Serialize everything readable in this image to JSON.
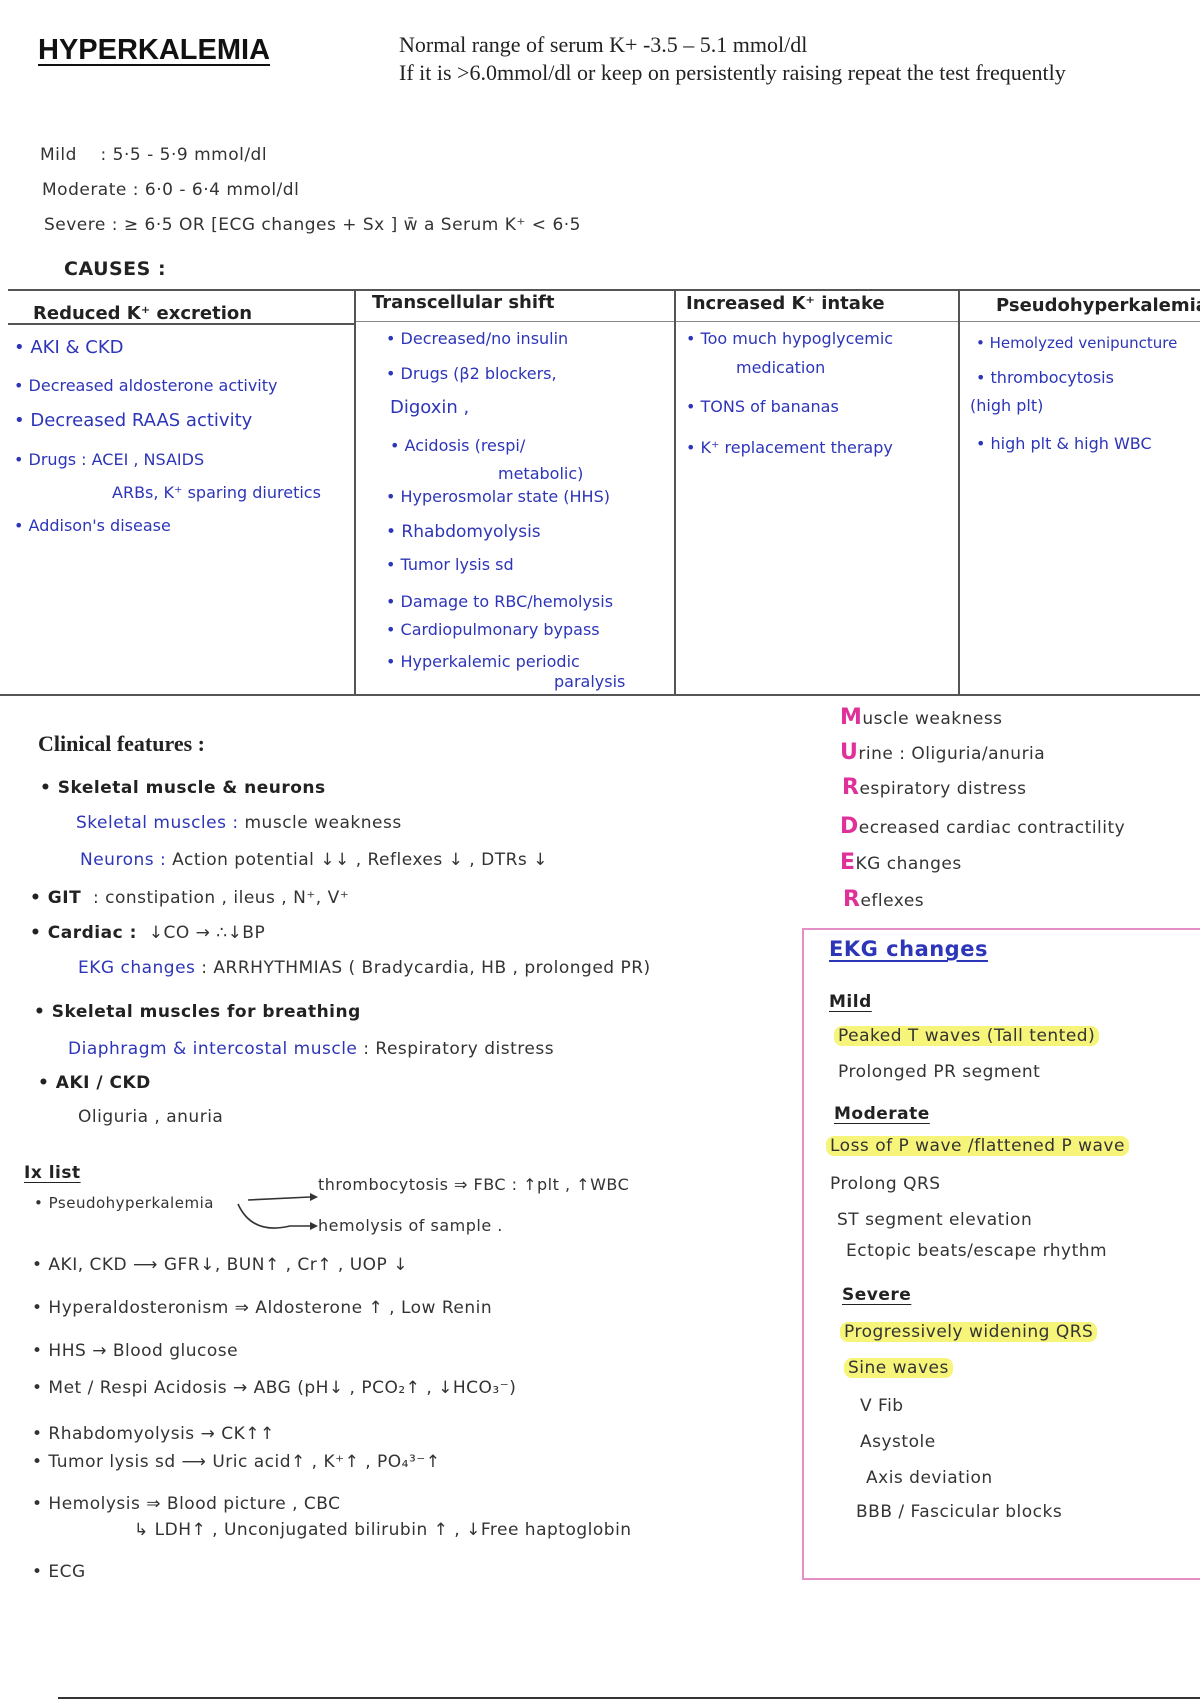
{
  "header": {
    "title": "HYPERKALEMIA",
    "normal_range": "Normal range of serum K+ -3.5 – 5.1 mmol/dl",
    "repeat_note": "If it is >6.0mmol/dl or keep on persistently raising repeat the test frequently"
  },
  "severity": [
    {
      "label": "Mild",
      "value": ": 5·5 - 5·9  mmol/dl"
    },
    {
      "label": "Moderate",
      "value": ": 6·0 - 6·4  mmol/dl"
    },
    {
      "label": "Severe",
      "value": ": ≥ 6·5   OR  [ECG changes + Sx ] w̄ a  Serum K⁺ < 6·5"
    }
  ],
  "causes": {
    "heading": "CAUSES :",
    "columns": [
      {
        "header": "Reduced K⁺ excretion",
        "items": [
          "• AKI & CKD",
          "• Decreased aldosterone activity",
          "• Decreased  RAAS activity",
          "• Drugs : ACEI , NSAIDS",
          "ARBs, K⁺ sparing diuretics",
          "• Addison's disease"
        ]
      },
      {
        "header": "Transcellular shift",
        "items": [
          "• Decreased/no insulin",
          "• Drugs (β2 blockers,",
          "Digoxin ,",
          "• Acidosis (respi/",
          "metabolic)",
          "• Hyperosmolar state (HHS)",
          "• Rhabdomyolysis",
          "• Tumor lysis sd",
          "• Damage to RBC/hemolysis",
          "• Cardiopulmonary bypass",
          "• Hyperkalemic  periodic",
          "paralysis"
        ]
      },
      {
        "header": "Increased K⁺ intake",
        "items": [
          "• Too much hypoglycemic",
          "medication",
          "• TONS of bananas",
          "• K⁺ replacement therapy"
        ]
      },
      {
        "header": "Pseudohyperkalemia",
        "items": [
          "• Hemolyzed venipuncture",
          "• thrombocytosis",
          "(high plt)",
          "• high plt & high WBC"
        ]
      }
    ]
  },
  "clinical": {
    "heading": "Clinical features :",
    "lines": [
      {
        "head": "• Skeletal muscle & neurons",
        "sub": "",
        "text": ""
      },
      {
        "head": "",
        "sub": "Skeletal muscles :",
        "text": "muscle weakness"
      },
      {
        "head": "",
        "sub": "Neurons :",
        "text": "Action potential ↓↓ , Reflexes ↓ , DTRs ↓"
      },
      {
        "head": "• GIT",
        "sub": "",
        "text": ": constipation , ileus ,  N⁺, V⁺"
      },
      {
        "head": "• Cardiac :",
        "sub": "",
        "text": "↓CO → ∴↓BP"
      },
      {
        "head": "",
        "sub": "EKG changes",
        "text": ": ARRHYTHMIAS ( Bradycardia, HB , prolonged PR)"
      },
      {
        "head": "• Skeletal muscles for breathing",
        "sub": "",
        "text": ""
      },
      {
        "head": "",
        "sub": "Diaphragm & intercostal muscle",
        "text": ":  Respiratory distress"
      },
      {
        "head": "• AKI / CKD",
        "sub": "",
        "text": ""
      },
      {
        "head": "",
        "sub": "",
        "text": "Oliguria  , anuria"
      }
    ]
  },
  "murder": [
    {
      "letter": "M",
      "rest": "uscle weakness"
    },
    {
      "letter": "U",
      "rest": "rine : Oliguria/anuria"
    },
    {
      "letter": "R",
      "rest": "espiratory distress"
    },
    {
      "letter": "D",
      "rest": "ecreased cardiac contractility"
    },
    {
      "letter": "E",
      "rest": "KG changes"
    },
    {
      "letter": "R",
      "rest": "eflexes"
    }
  ],
  "ekg": {
    "title": "EKG changes",
    "mild": {
      "label": "Mild",
      "items": [
        "Peaked  T waves  (Tall tented)",
        "Prolonged   PR segment"
      ]
    },
    "moderate": {
      "label": "Moderate",
      "items": [
        "Loss of  P wave /flattened P wave",
        "Prolong  QRS",
        "ST segment  elevation",
        "Ectopic beats/escape rhythm"
      ]
    },
    "severe": {
      "label": "Severe",
      "items": [
        "Progressively widening QRS",
        "Sine  waves",
        "V Fib",
        "Asystole",
        "Axis deviation",
        "BBB / Fascicular blocks"
      ]
    }
  },
  "ix": {
    "heading": "Ix list",
    "pseudo": "• Pseudohyperkalemia",
    "pseudo_a": "thrombocytosis ⇒ FBC : ↑plt , ↑WBC",
    "pseudo_b": "hemolysis of sample .",
    "lines": [
      "• AKI, CKD ⟶ GFR↓, BUN↑ , Cr↑ , UOP ↓",
      "• Hyperaldosteronism ⇒ Aldosterone ↑ ,  Low Renin",
      "• HHS → Blood glucose",
      "• Met / Respi  Acidosis → ABG  (pH↓ , PCO₂↑ , ↓HCO₃⁻)",
      "• Rhabdomyolysis →  CK↑↑",
      "• Tumor lysis sd  ⟶  Uric acid↑ , K⁺↑ , PO₄³⁻↑",
      "• Hemolysis ⇒ Blood picture , CBC",
      "↳ LDH↑ ,  Unconjugated bilirubin ↑ , ↓Free haptoglobin",
      "• ECG"
    ]
  }
}
